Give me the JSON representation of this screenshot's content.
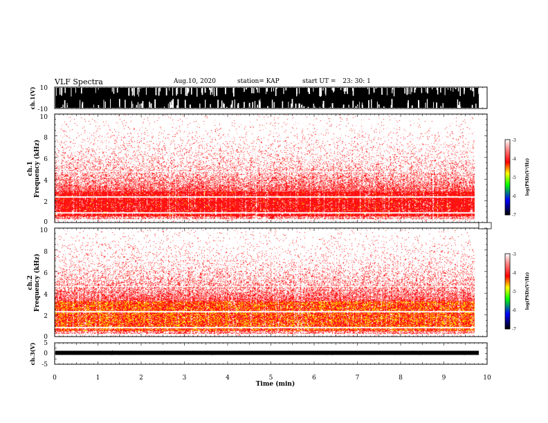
{
  "header": {
    "title": "VLF Spectra",
    "date": "Aug.10, 2020",
    "station": "station= KAP",
    "start_label": "start UT =",
    "start_value": "23: 30: 1"
  },
  "chart_data": [
    {
      "type": "line",
      "panel": "ch1-waveform",
      "ylabel": "ch.1(V)",
      "ylim": [
        -10,
        10
      ],
      "y_ticks": [
        "-10",
        "10"
      ],
      "xlim": [
        0,
        10
      ],
      "fill_color": "#000000"
    },
    {
      "type": "heatmap",
      "panel": "ch1-spectrogram",
      "ylabel": "ch.1 Frequency (kHz)",
      "ylabel_line1": "ch.1",
      "ylabel_line2": "Frequency (kHz)",
      "ylim": [
        0,
        10
      ],
      "y_ticks": [
        "0",
        "2",
        "4",
        "6",
        "8",
        "10"
      ],
      "xlim": [
        0,
        9.85
      ],
      "colorbar": {
        "label": "log(PSD)(V²/Hz)",
        "range": [
          -7,
          -3
        ],
        "ticks": [
          "-3",
          "-4",
          "-5",
          "-6",
          "-7"
        ]
      },
      "intense_band_khz": [
        0.5,
        2.8
      ],
      "colors": [
        "#000000",
        "#0000ff",
        "#00ff00",
        "#ffff00",
        "#ff0000",
        "#ffffff"
      ]
    },
    {
      "type": "heatmap",
      "panel": "ch2-spectrogram",
      "ylabel": "ch.2 Frequency (kHz)",
      "ylabel_line1": "ch.2",
      "ylabel_line2": "Frequency (kHz)",
      "ylim": [
        0,
        10
      ],
      "y_ticks": [
        "0",
        "2",
        "4",
        "6",
        "8",
        "10"
      ],
      "xlim": [
        0,
        9.85
      ],
      "colorbar": {
        "label": "log(PSD)(V²/Hz)",
        "range": [
          -7,
          -3
        ],
        "ticks": [
          "-3",
          "-4",
          "-5",
          "-6",
          "-7"
        ]
      },
      "intense_band_khz": [
        0.5,
        3.3
      ]
    },
    {
      "type": "line",
      "panel": "ch3-waveform",
      "ylabel": "ch.3(V)",
      "ylim": [
        -5,
        5
      ],
      "y_ticks": [
        "-5",
        "0",
        "5"
      ],
      "xlim": [
        0,
        10
      ],
      "xlabel": "Time (min)",
      "x_ticks": [
        "0",
        "1",
        "2",
        "3",
        "4",
        "5",
        "6",
        "7",
        "8",
        "9",
        "10"
      ]
    }
  ]
}
